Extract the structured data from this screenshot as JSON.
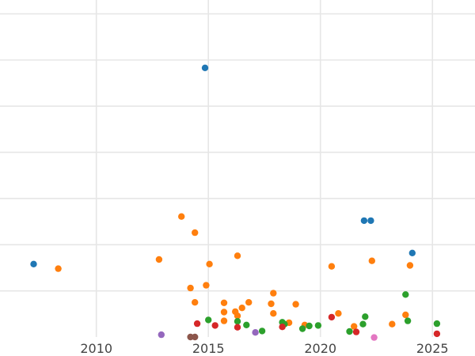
{
  "chart_data": {
    "type": "scatter",
    "title": "",
    "xlabel": "",
    "ylabel": "",
    "grid": true,
    "xlim": [
      2005.7,
      2026.9
    ],
    "ylim": [
      0,
      7.3
    ],
    "x_ticks": [
      2010,
      2015,
      2020,
      2025
    ],
    "x_tick_labels": [
      "2010",
      "2015",
      "2020",
      "2025"
    ],
    "y_gridlines": [
      1,
      2,
      3,
      4,
      5,
      6,
      7
    ],
    "series": [
      {
        "color": "#1f77b4",
        "points": [
          {
            "x": 2007.2,
            "y": 1.58
          },
          {
            "x": 2014.85,
            "y": 5.83
          },
          {
            "x": 2021.95,
            "y": 2.52
          },
          {
            "x": 2022.25,
            "y": 2.52
          },
          {
            "x": 2024.1,
            "y": 1.82
          }
        ]
      },
      {
        "color": "#ff7f0e",
        "points": [
          {
            "x": 2008.3,
            "y": 1.48
          },
          {
            "x": 2012.8,
            "y": 1.68
          },
          {
            "x": 2013.8,
            "y": 2.61
          },
          {
            "x": 2014.2,
            "y": 1.06
          },
          {
            "x": 2014.4,
            "y": 2.26
          },
          {
            "x": 2014.4,
            "y": 0.75
          },
          {
            "x": 2014.9,
            "y": 1.12
          },
          {
            "x": 2015.05,
            "y": 1.58
          },
          {
            "x": 2015.7,
            "y": 0.74
          },
          {
            "x": 2015.7,
            "y": 0.54
          },
          {
            "x": 2015.7,
            "y": 0.35
          },
          {
            "x": 2016.3,
            "y": 1.76
          },
          {
            "x": 2016.2,
            "y": 0.55
          },
          {
            "x": 2016.5,
            "y": 0.63
          },
          {
            "x": 2016.3,
            "y": 0.46
          },
          {
            "x": 2016.8,
            "y": 0.75
          },
          {
            "x": 2017.8,
            "y": 0.72
          },
          {
            "x": 2017.9,
            "y": 0.95
          },
          {
            "x": 2017.9,
            "y": 0.51
          },
          {
            "x": 2018.6,
            "y": 0.31
          },
          {
            "x": 2018.9,
            "y": 0.71
          },
          {
            "x": 2019.3,
            "y": 0.26
          },
          {
            "x": 2020.5,
            "y": 1.53
          },
          {
            "x": 2020.8,
            "y": 0.51
          },
          {
            "x": 2021.5,
            "y": 0.23
          },
          {
            "x": 2022.3,
            "y": 1.65
          },
          {
            "x": 2023.2,
            "y": 0.28
          },
          {
            "x": 2023.8,
            "y": 0.48
          },
          {
            "x": 2024.0,
            "y": 1.55
          }
        ]
      },
      {
        "color": "#2ca02c",
        "points": [
          {
            "x": 2015.0,
            "y": 0.37
          },
          {
            "x": 2016.3,
            "y": 0.34
          },
          {
            "x": 2016.7,
            "y": 0.26
          },
          {
            "x": 2017.4,
            "y": 0.13
          },
          {
            "x": 2018.3,
            "y": 0.32
          },
          {
            "x": 2018.4,
            "y": 0.28
          },
          {
            "x": 2019.2,
            "y": 0.18
          },
          {
            "x": 2019.5,
            "y": 0.24
          },
          {
            "x": 2019.9,
            "y": 0.25
          },
          {
            "x": 2021.3,
            "y": 0.12
          },
          {
            "x": 2021.9,
            "y": 0.28
          },
          {
            "x": 2022.0,
            "y": 0.44
          },
          {
            "x": 2023.8,
            "y": 0.92
          },
          {
            "x": 2023.9,
            "y": 0.35
          },
          {
            "x": 2025.2,
            "y": 0.29
          }
        ]
      },
      {
        "color": "#d62728",
        "points": [
          {
            "x": 2014.5,
            "y": 0.29
          },
          {
            "x": 2015.3,
            "y": 0.25
          },
          {
            "x": 2016.3,
            "y": 0.21
          },
          {
            "x": 2018.3,
            "y": 0.22
          },
          {
            "x": 2020.5,
            "y": 0.43
          },
          {
            "x": 2021.6,
            "y": 0.11
          },
          {
            "x": 2025.2,
            "y": 0.07
          }
        ]
      },
      {
        "color": "#9467bd",
        "points": [
          {
            "x": 2012.9,
            "y": 0.05
          },
          {
            "x": 2017.1,
            "y": 0.1
          }
        ]
      },
      {
        "color": "#8c564b",
        "points": [
          {
            "x": 2014.2,
            "y": 0.0
          },
          {
            "x": 2014.4,
            "y": 0.0
          }
        ]
      },
      {
        "color": "#e377c2",
        "points": [
          {
            "x": 2022.4,
            "y": -0.01
          }
        ]
      }
    ]
  }
}
